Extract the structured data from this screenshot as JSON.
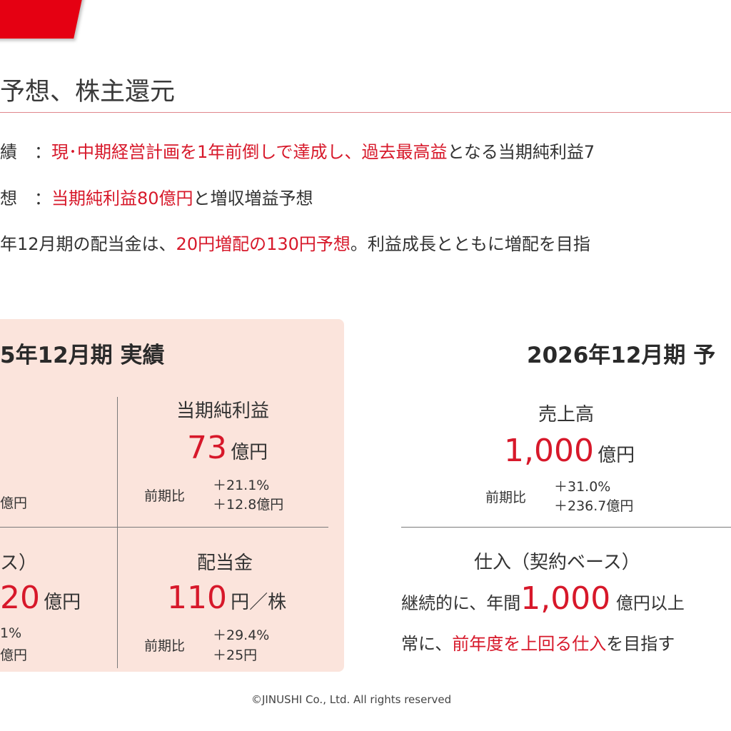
{
  "header": {
    "title": "予想、株主還元"
  },
  "bullets": [
    {
      "label": "績　：",
      "highlight": "現･中期経営計画を1年前倒しで達成し、過去最高益",
      "rest": "となる当期純利益7"
    },
    {
      "label": "想　：",
      "highlight": "当期純利益80億円",
      "rest": "と増収増益予想"
    },
    {
      "prefix": "年12月期の配当金は、",
      "highlight": "20円増配の130円予想",
      "rest": "。利益成長とともに増配を目指"
    }
  ],
  "results": {
    "title": "5年12月期 実績",
    "net_income": {
      "label": "当期純利益",
      "value": "73",
      "unit": "億円",
      "yoy_label": "前期比",
      "yoy_pct": "＋21.1%",
      "yoy_amount": "＋12.8億円"
    },
    "partial_left_top": {
      "amount_fragment": "億円"
    },
    "partial_left_bottom": {
      "label_fragment": "ス）",
      "value": "20",
      "unit": "億円",
      "yoy_pct_fragment": "1%",
      "yoy_amount_fragment": "億円"
    },
    "dividend": {
      "label": "配当金",
      "value": "110",
      "unit": "円／株",
      "yoy_label": "前期比",
      "yoy_pct": "＋29.4%",
      "yoy_amount": "＋25円"
    }
  },
  "forecast": {
    "title": "2026年12月期 予",
    "sales": {
      "label": "売上高",
      "value": "1,000",
      "unit": "億円",
      "yoy_label": "前期比",
      "yoy_pct": "＋31.0%",
      "yoy_amount": "＋236.7億円"
    },
    "purchase": {
      "label": "仕入（契約ベース）",
      "line1_prefix": "継続的に、年間",
      "line1_value": "1,000",
      "line1_suffix": "億円以上",
      "line2_prefix": "常に、",
      "line2_highlight": "前年度を上回る仕入",
      "line2_suffix": "を目指す"
    }
  },
  "footer": {
    "copyright": "©JINUSHI Co., Ltd. All rights reserved"
  },
  "colors": {
    "accent_red": "#d7182a",
    "tab_red": "#e50012",
    "panel_bg": "#fbe4dc",
    "rule_red": "#e0868c"
  }
}
